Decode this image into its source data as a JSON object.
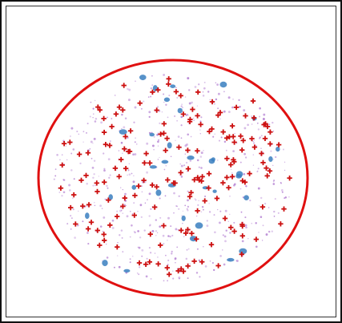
{
  "image": {
    "subject": "petri-dish-colony-count",
    "colors": {
      "dish_ring": "#e01010",
      "marker": "#cc1010",
      "colony": "#3a7fc0",
      "speck": "#b07ad0",
      "background": "#ffffff",
      "frame": "#111111"
    },
    "icons": {
      "marker": "plus-mark-icon",
      "colony": "colony-dot-icon"
    }
  }
}
